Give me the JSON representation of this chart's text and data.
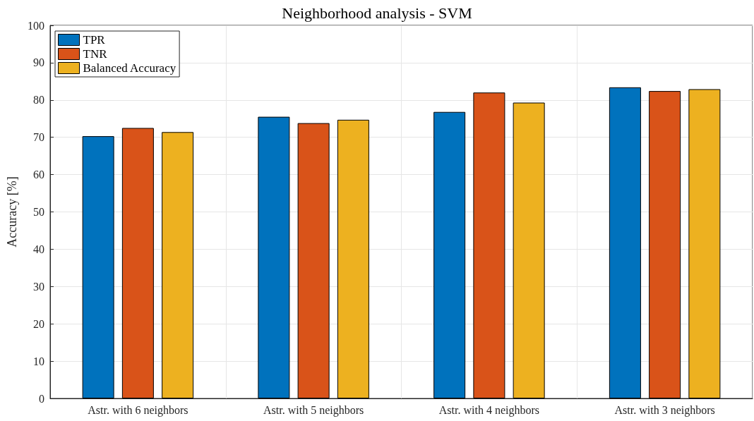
{
  "chart_data": {
    "type": "bar",
    "title": "Neighborhood analysis - SVM",
    "ylabel": "Accuracy [%]",
    "categories": [
      "Astr. with 6 neighbors",
      "Astr. with 5 neighbors",
      "Astr. with 4 neighbors",
      "Astr. with 3 neighbors"
    ],
    "series": [
      {
        "name": "TPR",
        "color": "#0072bd",
        "values": [
          70.3,
          75.5,
          76.8,
          83.4
        ]
      },
      {
        "name": "TNR",
        "color": "#d95319",
        "values": [
          72.5,
          73.8,
          82.0,
          82.4
        ]
      },
      {
        "name": "Balanced Accuracy",
        "color": "#edb120",
        "values": [
          71.4,
          74.7,
          79.3,
          82.9
        ]
      }
    ],
    "ylim": [
      0,
      100
    ],
    "yticks": [
      0,
      10,
      20,
      30,
      40,
      50,
      60,
      70,
      80,
      90,
      100
    ],
    "grid": true,
    "legend": "top left"
  }
}
